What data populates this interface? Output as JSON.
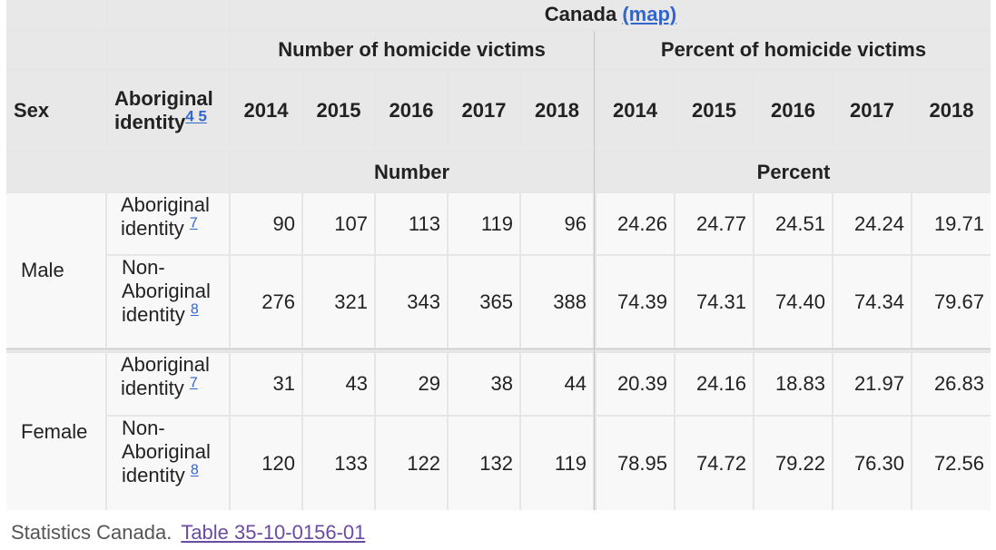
{
  "header": {
    "region": "Canada",
    "map_link": "(map)",
    "group_number": "Number of homicide victims",
    "group_percent": "Percent of homicide victims",
    "col_sex": "Sex",
    "col_identity_line1": "Aboriginal",
    "col_identity_line2": "identity",
    "col_identity_notes": "4 5",
    "years": [
      "2014",
      "2015",
      "2016",
      "2017",
      "2018"
    ],
    "unit_number": "Number",
    "unit_percent": "Percent"
  },
  "rows": [
    {
      "sex": "Male",
      "identity_lines": [
        "Aboriginal",
        "identity"
      ],
      "note": "7",
      "numbers": [
        "90",
        "107",
        "113",
        "119",
        "96"
      ],
      "percents": [
        "24.26",
        "24.77",
        "24.51",
        "24.24",
        "19.71"
      ]
    },
    {
      "sex": "",
      "identity_lines": [
        "Non-",
        "Aboriginal",
        "identity"
      ],
      "note": "8",
      "numbers": [
        "276",
        "321",
        "343",
        "365",
        "388"
      ],
      "percents": [
        "74.39",
        "74.31",
        "74.40",
        "74.34",
        "79.67"
      ]
    },
    {
      "sex": "Female",
      "identity_lines": [
        "Aboriginal",
        "identity"
      ],
      "note": "7",
      "numbers": [
        "31",
        "43",
        "29",
        "38",
        "44"
      ],
      "percents": [
        "20.39",
        "24.16",
        "18.83",
        "21.97",
        "26.83"
      ]
    },
    {
      "sex": "",
      "identity_lines": [
        "Non-",
        "Aboriginal",
        "identity"
      ],
      "note": "8",
      "numbers": [
        "120",
        "133",
        "122",
        "132",
        "119"
      ],
      "percents": [
        "78.95",
        "74.72",
        "79.22",
        "76.30",
        "72.56"
      ]
    }
  ],
  "footer": {
    "source": "Statistics Canada.",
    "table_link": "Table  35-10-0156-01 "
  }
}
